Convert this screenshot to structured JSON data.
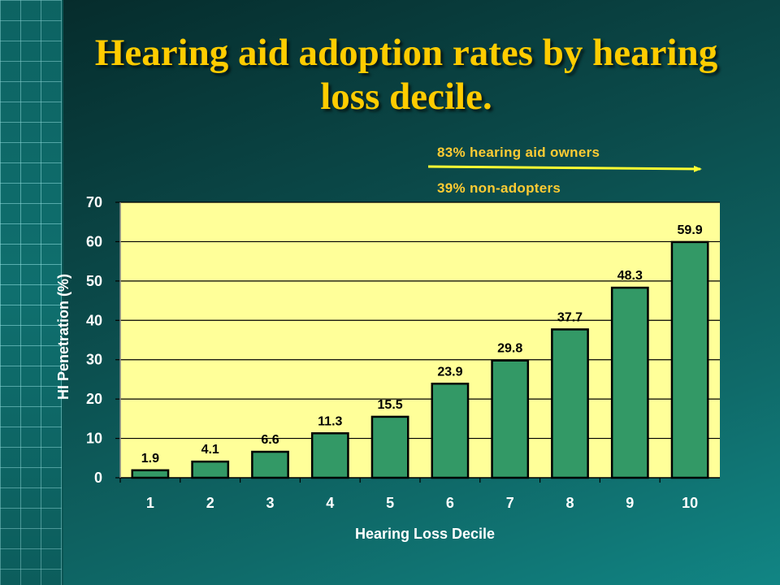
{
  "slide": {
    "title": "Hearing aid adoption rates by hearing loss decile.",
    "annotation_top": "83% hearing aid owners",
    "annotation_bottom": "39% non-adopters"
  },
  "colors": {
    "title": "#ffcc00",
    "annotation": "#ffcc33",
    "plot_background": "#ffff99",
    "bar_fill": "#339966",
    "arrow": "#ffff33"
  },
  "chart_data": {
    "type": "bar",
    "categories": [
      "1",
      "2",
      "3",
      "4",
      "5",
      "6",
      "7",
      "8",
      "9",
      "10"
    ],
    "values": [
      1.9,
      4.1,
      6.6,
      11.3,
      15.5,
      23.9,
      29.8,
      37.7,
      48.3,
      59.9
    ],
    "data_labels": [
      "1.9",
      "4.1",
      "6.6",
      "11.3",
      "15.5",
      "23.9",
      "29.8",
      "37.7",
      "48.3",
      "59.9"
    ],
    "xlabel": "Hearing Loss Decile",
    "ylabel": "HI Penetration (%)",
    "ylim": [
      0,
      70
    ],
    "yticks": [
      0,
      10,
      20,
      30,
      40,
      50,
      60,
      70
    ],
    "grid": true,
    "legend": "none"
  }
}
